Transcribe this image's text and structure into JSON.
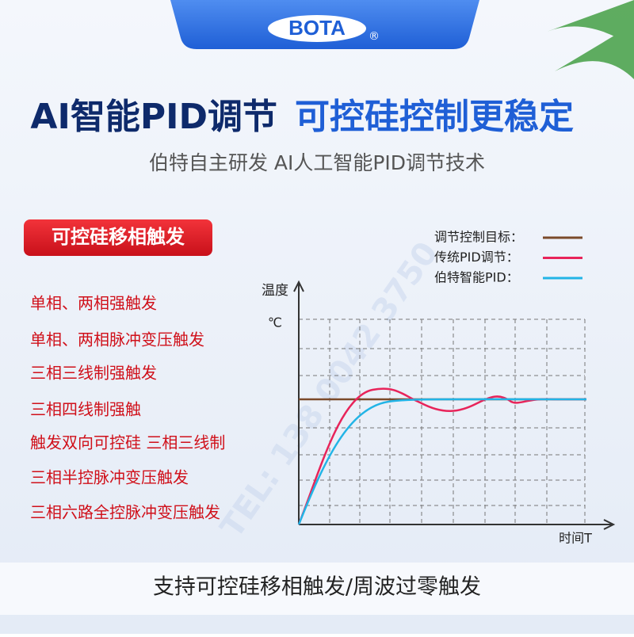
{
  "logo": {
    "brand": "BOTA",
    "mark": "®"
  },
  "header": {
    "title_part1": "AI智能PID调节",
    "title_part2": "可控硅控制更稳定",
    "subtitle": "伯特自主研发  AI人工智能PID调节技术"
  },
  "badge": "可控硅移相触发",
  "features": [
    "单相、两相强触发",
    "单相、两相脉冲变压触发",
    "三相三线制强触发",
    "三相四线制强触",
    "触发双向可控硅 三相三线制",
    "三相半控脉冲变压触发",
    "三相六路全控脉冲变压触发"
  ],
  "diagram": {
    "legend": [
      "调节控制目标：",
      "传统PID调节：",
      "伯特智能PID："
    ],
    "y_label": "温度",
    "y_unit": "℃",
    "x_label": "时间T"
  },
  "watermark": "TEL: 138 0042 3750",
  "footer": "支持可控硅移相触发/周波过零触发"
}
